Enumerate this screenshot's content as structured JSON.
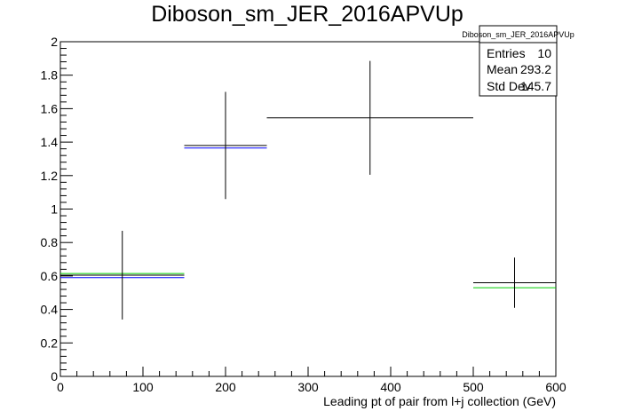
{
  "chart_data": {
    "type": "scatter",
    "title": "Diboson_sm_JER_2016APVUp",
    "xlabel": "Leading pt of pair from l+j collection (GeV)",
    "ylabel": "",
    "xlim": [
      0,
      600
    ],
    "ylim": [
      0,
      2
    ],
    "x_ticks": [
      0,
      100,
      200,
      300,
      400,
      500,
      600
    ],
    "y_ticks": [
      0,
      0.2,
      0.4,
      0.6,
      0.8,
      1,
      1.2,
      1.4,
      1.6,
      1.8,
      2
    ],
    "x_tick_labels": [
      "0",
      "100",
      "200",
      "300",
      "400",
      "500",
      "600"
    ],
    "y_tick_labels": [
      "0",
      "0.2",
      "0.4",
      "0.6",
      "0.8",
      "1",
      "1.2",
      "1.4",
      "1.6",
      "1.8",
      "2"
    ],
    "grid": false,
    "series": [
      {
        "color": "#000000",
        "points": [
          {
            "x_low": 0,
            "x_high": 150,
            "y": 0.605,
            "y_err": 0.265
          },
          {
            "x_low": 150,
            "x_high": 250,
            "y": 1.38,
            "y_err": 0.32
          },
          {
            "x_low": 250,
            "x_high": 500,
            "y": 1.545,
            "y_err": 0.34
          },
          {
            "x_low": 500,
            "x_high": 600,
            "y": 0.56,
            "y_err": 0.15
          }
        ]
      },
      {
        "color": "#0000ff",
        "points": [
          {
            "x_low": 0,
            "x_high": 150,
            "y": 0.59
          },
          {
            "x_low": 150,
            "x_high": 250,
            "y": 1.365
          }
        ]
      },
      {
        "color": "#00cc00",
        "points": [
          {
            "x_low": 0,
            "x_high": 150,
            "y": 0.615
          },
          {
            "x_low": 500,
            "x_high": 600,
            "y": 0.53
          }
        ]
      }
    ],
    "stats_box": {
      "title": "Diboson_sm_JER_2016APVUp",
      "rows": [
        {
          "label": "Entries",
          "value": "10"
        },
        {
          "label": "Mean",
          "value": "293.2"
        },
        {
          "label": "Std Dev",
          "value": "145.7"
        }
      ]
    }
  }
}
